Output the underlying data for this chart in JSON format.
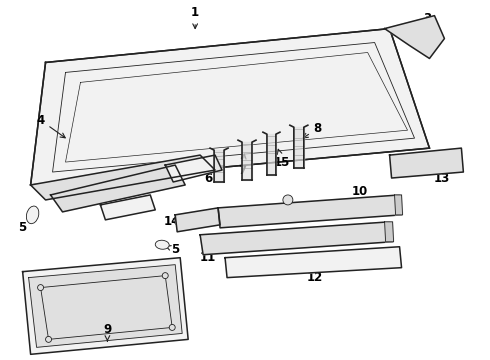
{
  "bg_color": "#ffffff",
  "line_color": "#222222",
  "label_color": "#000000",
  "lw_main": 1.1,
  "lw_thin": 0.6,
  "fs": 8.5
}
